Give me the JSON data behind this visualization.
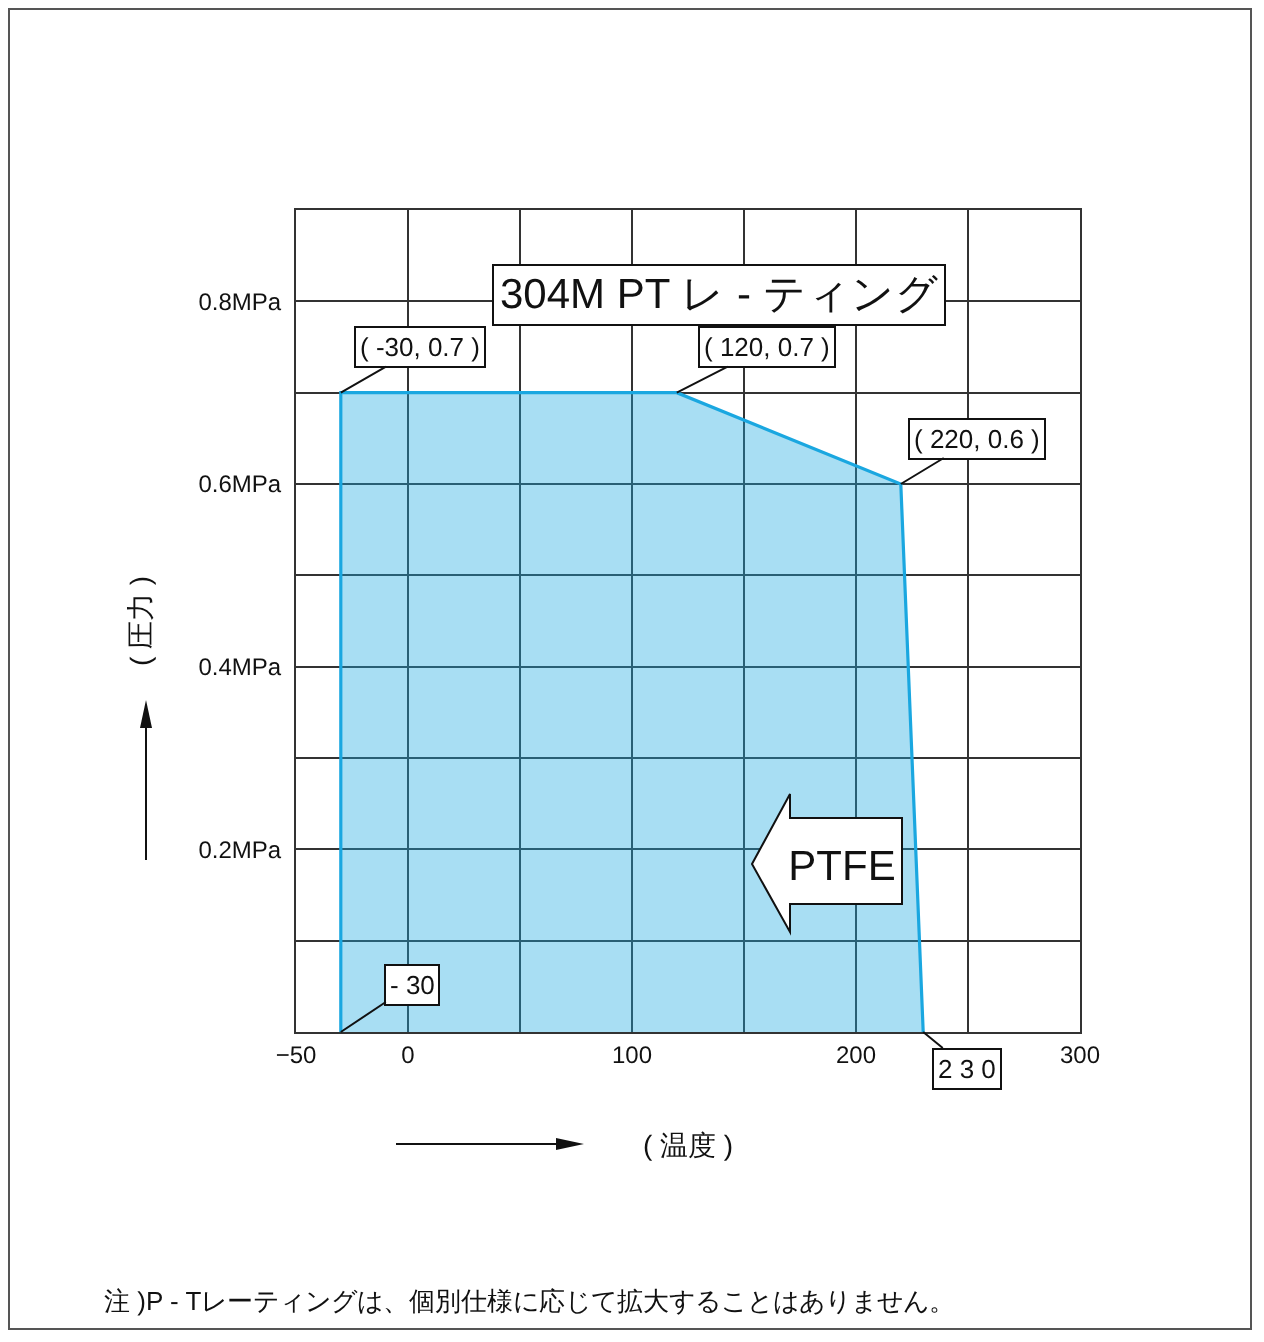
{
  "chart_data": {
    "type": "area",
    "title": "304M PT レ - ティング",
    "xlabel": "( 温度 )",
    "ylabel": "( 圧力 )",
    "x": [
      -30,
      -30,
      120,
      220,
      230
    ],
    "series": [
      {
        "color": "#1aa7e0",
        "values": [
          0,
          0.7,
          0.7,
          0.6,
          0
        ]
      }
    ],
    "xlim": [
      -50,
      300
    ],
    "ylim": [
      0,
      0.9
    ],
    "xticks": [
      {
        "value": -50,
        "label": "−50"
      },
      0,
      {
        "value": 50,
        "label": null
      },
      100,
      {
        "value": 150,
        "label": null
      },
      200,
      {
        "value": 250,
        "label": null
      },
      300
    ],
    "yticks": [
      {
        "value": 0,
        "label": null
      },
      {
        "value": 0.1,
        "label": null
      },
      {
        "value": 0.2,
        "label": "0.2MPa"
      },
      {
        "value": 0.3,
        "label": null
      },
      {
        "value": 0.4,
        "label": "0.4MPa"
      },
      {
        "value": 0.5,
        "label": null
      },
      {
        "value": 0.6,
        "label": "0.6MPa"
      },
      {
        "value": 0.7,
        "label": null
      },
      {
        "value": 0.8,
        "label": "0.8MPa"
      },
      {
        "value": 0.9,
        "label": null
      }
    ],
    "grid": true,
    "annotations": [
      {
        "text": "( -30, 0.7 )",
        "x": -30,
        "y": 0.7
      },
      {
        "text": "( 120, 0.7 )",
        "x": 120,
        "y": 0.7
      },
      {
        "text": "( 220, 0.6 )",
        "x": 220,
        "y": 0.6
      },
      {
        "text": "- 30",
        "x": -30,
        "y": 0
      },
      {
        "text": "2 3 0",
        "x": 230,
        "y": 0
      },
      "PTFE",
      "注 )P - Tレーティングは、個別仕様に応じて拡大することはありません。"
    ]
  }
}
